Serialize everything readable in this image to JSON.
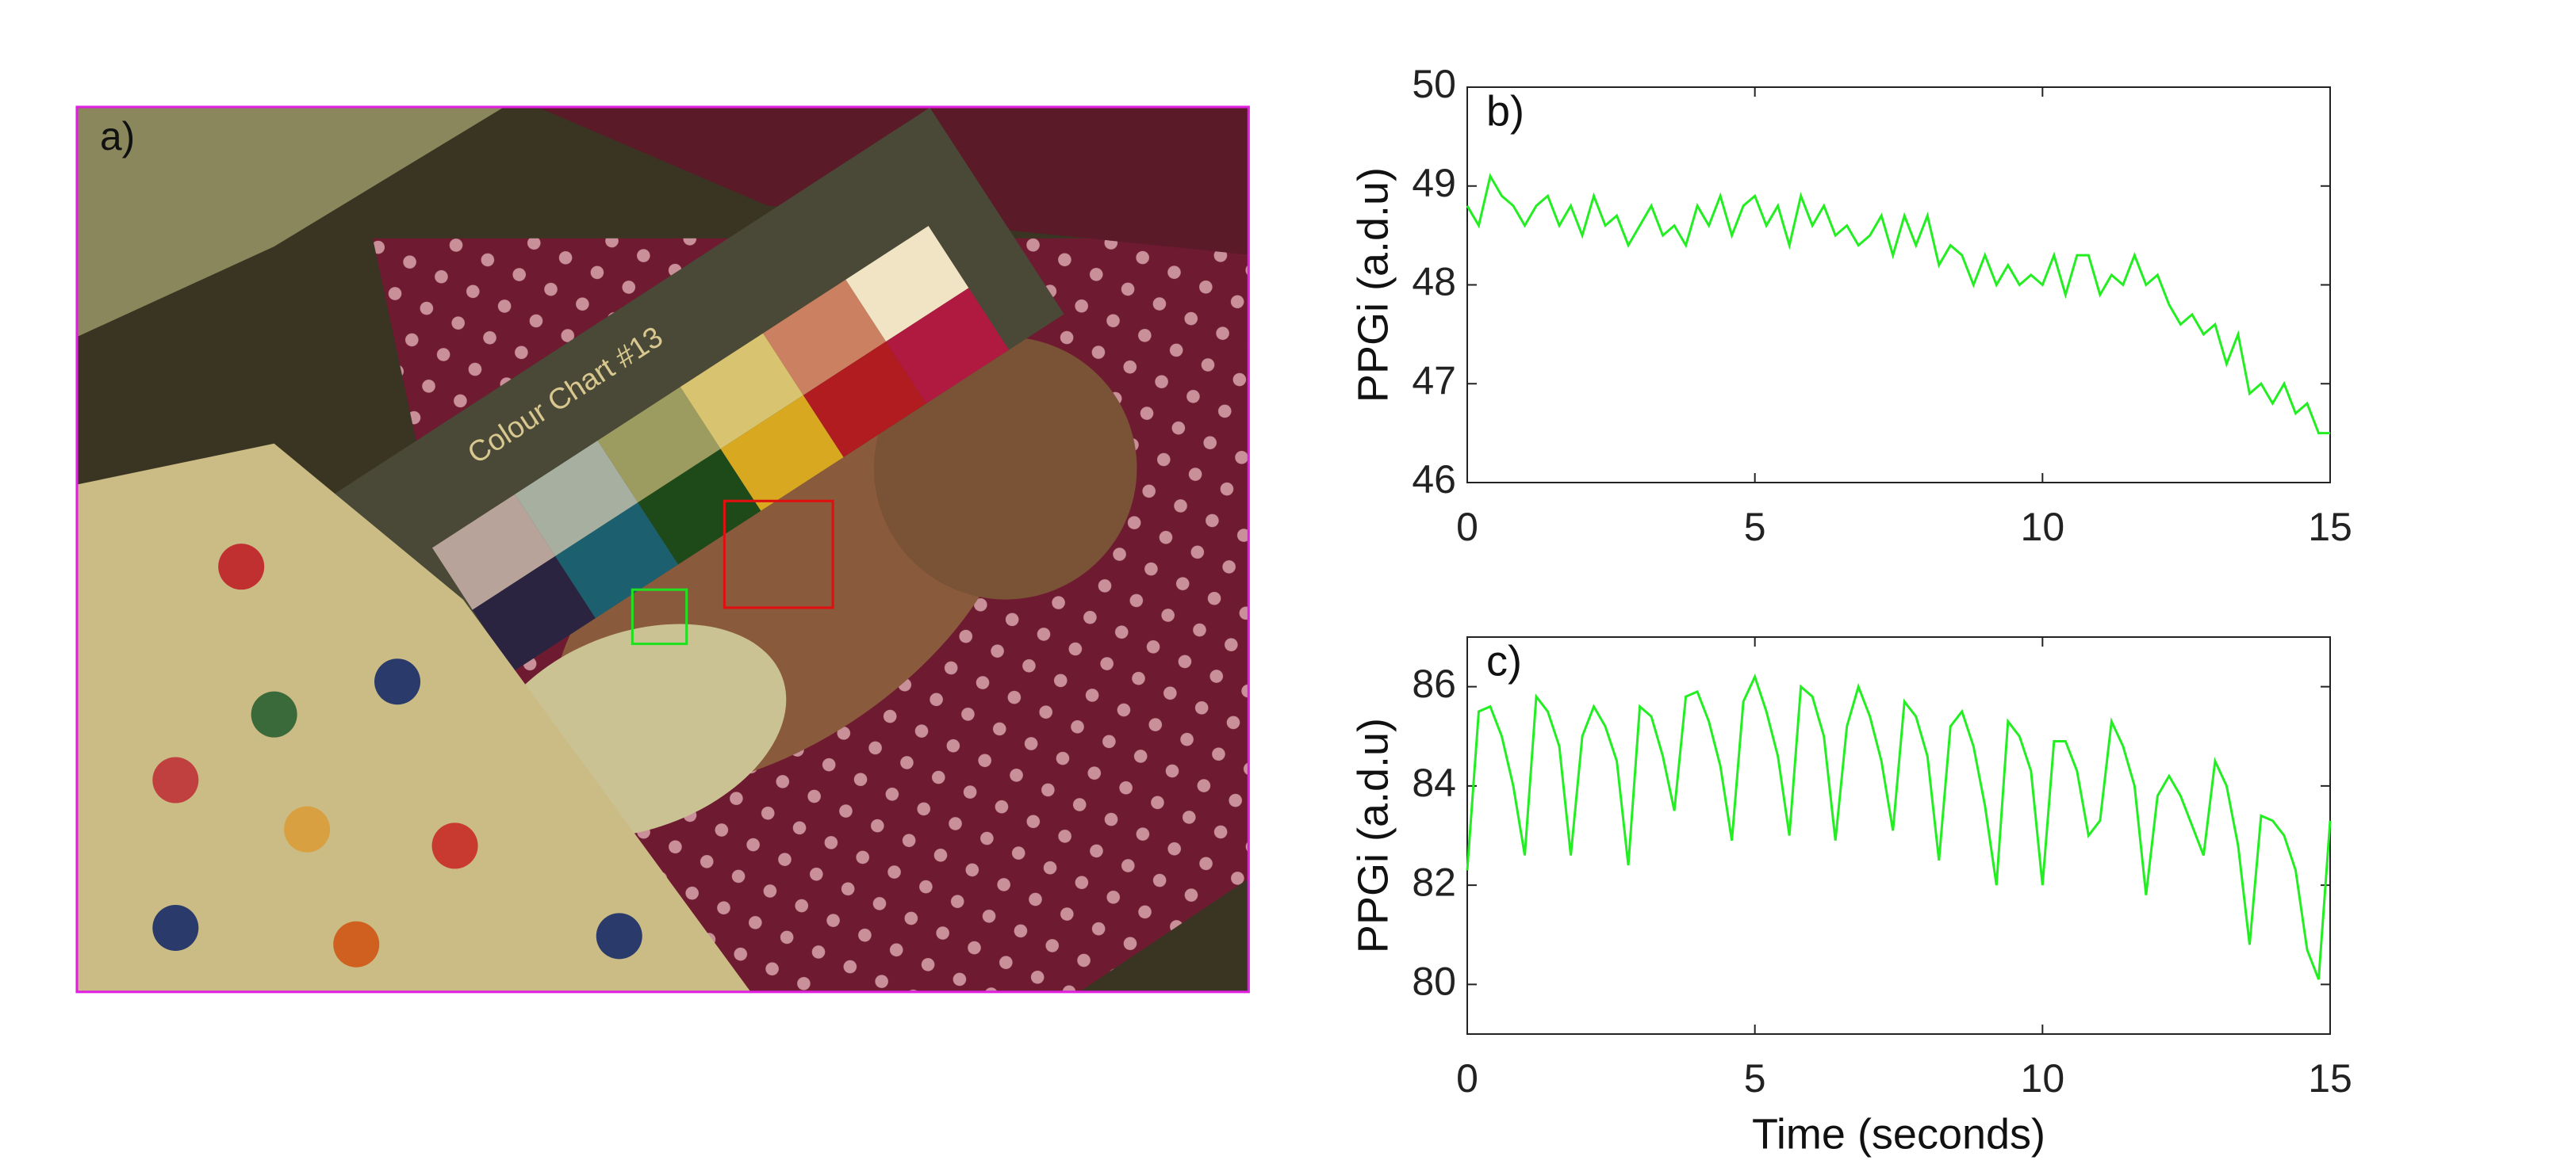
{
  "photo": {
    "label": "a)",
    "chart_text": "Colour Chart #13"
  },
  "chart_data": [
    {
      "type": "line",
      "panel_label": "b)",
      "ylabel": "PPGi (a.d.u)",
      "x": [
        0,
        0.2,
        0.4,
        0.6,
        0.8,
        1,
        1.2,
        1.4,
        1.6,
        1.8,
        2,
        2.2,
        2.4,
        2.6,
        2.8,
        3,
        3.2,
        3.4,
        3.6,
        3.8,
        4,
        4.2,
        4.4,
        4.6,
        4.8,
        5,
        5.2,
        5.4,
        5.6,
        5.8,
        6,
        6.2,
        6.4,
        6.6,
        6.8,
        7,
        7.2,
        7.4,
        7.6,
        7.8,
        8,
        8.2,
        8.4,
        8.6,
        8.8,
        9,
        9.2,
        9.4,
        9.6,
        9.8,
        10,
        10.2,
        10.4,
        10.6,
        10.8,
        11,
        11.2,
        11.4,
        11.6,
        11.8,
        12,
        12.2,
        12.4,
        12.6,
        12.8,
        13,
        13.2,
        13.4,
        13.6,
        13.8,
        14,
        14.2,
        14.4,
        14.6,
        14.8,
        15
      ],
      "series": [
        {
          "color": "#22ee22",
          "values": [
            48.8,
            48.6,
            49.1,
            48.9,
            48.8,
            48.6,
            48.8,
            48.9,
            48.6,
            48.8,
            48.5,
            48.9,
            48.6,
            48.7,
            48.4,
            48.6,
            48.8,
            48.5,
            48.6,
            48.4,
            48.8,
            48.6,
            48.9,
            48.5,
            48.8,
            48.9,
            48.6,
            48.8,
            48.4,
            48.9,
            48.6,
            48.8,
            48.5,
            48.6,
            48.4,
            48.5,
            48.7,
            48.3,
            48.7,
            48.4,
            48.7,
            48.2,
            48.4,
            48.3,
            48.0,
            48.3,
            48.0,
            48.2,
            48.0,
            48.1,
            48.0,
            48.3,
            47.9,
            48.3,
            48.3,
            47.9,
            48.1,
            48.0,
            48.3,
            48.0,
            48.1,
            47.8,
            47.6,
            47.7,
            47.5,
            47.6,
            47.2,
            47.5,
            46.9,
            47.0,
            46.8,
            47.0,
            46.7,
            46.8,
            46.5,
            46.5
          ]
        }
      ],
      "xlim": [
        0,
        15
      ],
      "xticks": [
        0,
        5,
        10,
        15
      ],
      "ylim": [
        46,
        50
      ],
      "yticks": [
        46,
        47,
        48,
        49,
        50
      ]
    },
    {
      "type": "line",
      "panel_label": "c)",
      "ylabel": "PPGi (a.d.u)",
      "xlabel": "Time (seconds)",
      "x": [
        0,
        0.2,
        0.4,
        0.6,
        0.8,
        1,
        1.2,
        1.4,
        1.6,
        1.8,
        2,
        2.2,
        2.4,
        2.6,
        2.8,
        3,
        3.2,
        3.4,
        3.6,
        3.8,
        4,
        4.2,
        4.4,
        4.6,
        4.8,
        5,
        5.2,
        5.4,
        5.6,
        5.8,
        6,
        6.2,
        6.4,
        6.6,
        6.8,
        7,
        7.2,
        7.4,
        7.6,
        7.8,
        8,
        8.2,
        8.4,
        8.6,
        8.8,
        9,
        9.2,
        9.4,
        9.6,
        9.8,
        10,
        10.2,
        10.4,
        10.6,
        10.8,
        11,
        11.2,
        11.4,
        11.6,
        11.8,
        12,
        12.2,
        12.4,
        12.6,
        12.8,
        13,
        13.2,
        13.4,
        13.6,
        13.8,
        14,
        14.2,
        14.4,
        14.6,
        14.8,
        15
      ],
      "series": [
        {
          "color": "#22ee22",
          "values": [
            82.3,
            85.5,
            85.6,
            85.0,
            84.0,
            82.6,
            85.8,
            85.5,
            84.8,
            82.6,
            85.0,
            85.6,
            85.2,
            84.5,
            82.4,
            85.6,
            85.4,
            84.6,
            83.5,
            85.8,
            85.9,
            85.3,
            84.4,
            82.9,
            85.7,
            86.2,
            85.5,
            84.6,
            83.0,
            86.0,
            85.8,
            85.0,
            82.9,
            85.2,
            86.0,
            85.4,
            84.5,
            83.1,
            85.7,
            85.4,
            84.6,
            82.5,
            85.2,
            85.5,
            84.8,
            83.6,
            82.0,
            85.3,
            85.0,
            84.3,
            82.0,
            84.9,
            84.9,
            84.3,
            83.0,
            83.3,
            85.3,
            84.8,
            84.0,
            81.8,
            83.8,
            84.2,
            83.8,
            83.2,
            82.6,
            84.5,
            84.0,
            82.8,
            80.8,
            83.4,
            83.3,
            83.0,
            82.3,
            80.7,
            80.1,
            83.3
          ]
        }
      ],
      "xlim": [
        0,
        15
      ],
      "xticks": [
        0,
        5,
        10,
        15
      ],
      "ylim": [
        79,
        87
      ],
      "yticks": [
        80,
        82,
        84,
        86
      ]
    }
  ]
}
